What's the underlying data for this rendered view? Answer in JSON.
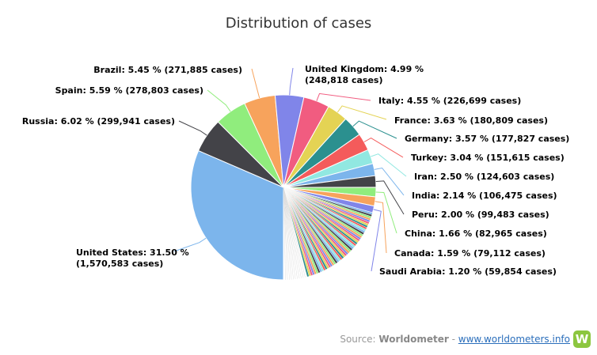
{
  "chart_data": {
    "type": "pie",
    "title": "Distribution of cases",
    "series": [
      {
        "name": "United States",
        "label": "United States: 31.50 %",
        "label2": "(1,570,583 cases)",
        "value": 31.5,
        "color": "#7cb5ec"
      },
      {
        "name": "Russia",
        "label": "Russia: 6.02 % (299,941 cases)",
        "value": 6.02,
        "color": "#434348"
      },
      {
        "name": "Spain",
        "label": "Spain: 5.59 % (278,803 cases)",
        "value": 5.59,
        "color": "#90ed7d"
      },
      {
        "name": "Brazil",
        "label": "Brazil: 5.45 % (271,885 cases)",
        "value": 5.45,
        "color": "#f7a35c"
      },
      {
        "name": "United Kingdom",
        "label": "United Kingdom: 4.99 %",
        "label2": "(248,818 cases)",
        "value": 4.99,
        "color": "#8085e9"
      },
      {
        "name": "Italy",
        "label": "Italy: 4.55 % (226,699 cases)",
        "value": 4.55,
        "color": "#f15c80"
      },
      {
        "name": "France",
        "label": "France: 3.63 % (180,809 cases)",
        "value": 3.63,
        "color": "#e4d354"
      },
      {
        "name": "Germany",
        "label": "Germany: 3.57 % (177,827 cases)",
        "value": 3.57,
        "color": "#2b908f"
      },
      {
        "name": "Turkey",
        "label": "Turkey: 3.04 % (151,615 cases)",
        "value": 3.04,
        "color": "#f45b5b"
      },
      {
        "name": "Iran",
        "label": "Iran: 2.50 % (124,603 cases)",
        "value": 2.5,
        "color": "#91e8e1"
      },
      {
        "name": "India",
        "label": "India: 2.14 % (106,475 cases)",
        "value": 2.14,
        "color": "#7cb5ec"
      },
      {
        "name": "Peru",
        "label": "Peru: 2.00 % (99,483 cases)",
        "value": 2.0,
        "color": "#434348"
      },
      {
        "name": "China",
        "label": "China: 1.66 % (82,965 cases)",
        "value": 1.66,
        "color": "#90ed7d"
      },
      {
        "name": "Canada",
        "label": "Canada: 1.59 % (79,112 cases)",
        "value": 1.59,
        "color": "#f7a35c"
      },
      {
        "name": "Saudi Arabia",
        "label": "Saudi Arabia: 1.20 % (59,854 cases)",
        "value": 1.2,
        "color": "#8085e9"
      }
    ],
    "palette": [
      "#7cb5ec",
      "#434348",
      "#90ed7d",
      "#f7a35c",
      "#8085e9",
      "#f15c80",
      "#e4d354",
      "#2b908f",
      "#f45b5b",
      "#91e8e1"
    ]
  },
  "footer": {
    "source_prefix": "Source:",
    "source_name": "Worldometer",
    "separator": "-",
    "source_url": "www.worldometers.info",
    "logo_letter": "W"
  }
}
